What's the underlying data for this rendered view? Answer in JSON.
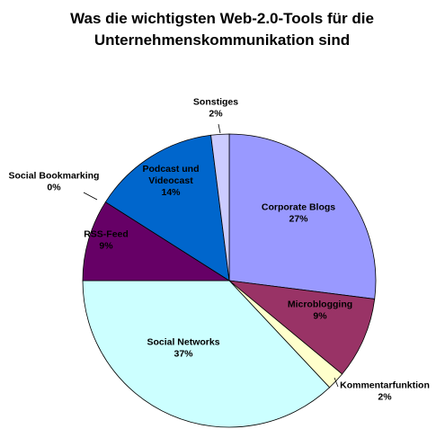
{
  "chart_data": {
    "type": "pie",
    "title_lines": [
      "Was die wichtigsten Web-2.0-Tools für die",
      "Unternehmenskommunikation sind"
    ],
    "start_angle_deg": 0,
    "direction": "clockwise",
    "slices": [
      {
        "label": "Corporate Blogs",
        "value": 27,
        "value_label": "27%",
        "color": "#9999ff"
      },
      {
        "label": "Microblogging",
        "value": 9,
        "value_label": "9%",
        "color": "#993366"
      },
      {
        "label": "Kommentarfunktion",
        "value": 2,
        "value_label": "2%",
        "color": "#ffffcc"
      },
      {
        "label": "Social Networks",
        "value": 37,
        "value_label": "37%",
        "color": "#ccffff"
      },
      {
        "label": "RSS-Feed",
        "value": 9,
        "value_label": "9%",
        "color": "#660066"
      },
      {
        "label": "Social Bookmarking",
        "value": 0,
        "value_label": "0%",
        "color": "#ff8080"
      },
      {
        "label": "Podcast und Videocast",
        "value": 14,
        "value_label": "14%",
        "color": "#0066cc"
      },
      {
        "label": "Sonstiges",
        "value": 2,
        "value_label": "2%",
        "color": "#ccccff"
      }
    ]
  }
}
